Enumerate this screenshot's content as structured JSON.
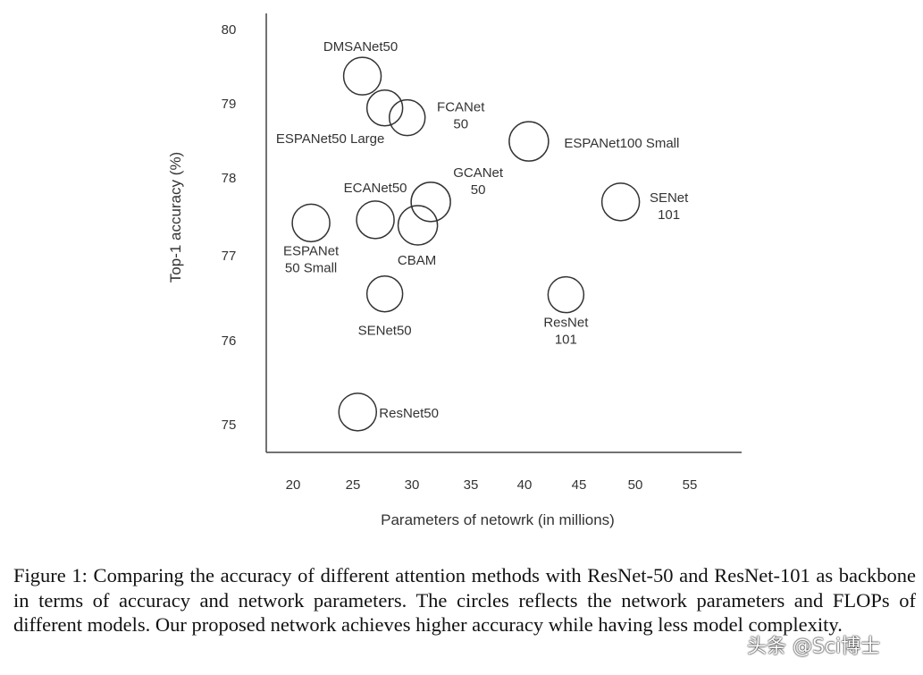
{
  "chart_data": {
    "type": "scatter",
    "title": "",
    "xlabel": "Parameters of netowrk (in millions)",
    "ylabel": "Top-1 accuracy (%)",
    "xlim": [
      18,
      60
    ],
    "ylim": [
      74.6,
      80.2
    ],
    "x_ticks": [
      20,
      25,
      30,
      35,
      40,
      45,
      50,
      55
    ],
    "y_ticks": [
      75,
      76,
      77,
      78,
      79,
      80
    ],
    "grid": false,
    "marker": "hollow-circle",
    "points": [
      {
        "label": [
          "DMSANet50"
        ],
        "x": 25.8,
        "y": 79.36
      },
      {
        "label": [
          "ESPANet50 Large"
        ],
        "x": 27.7,
        "y": 78.93
      },
      {
        "label": [
          "FCANet",
          "50"
        ],
        "x": 29.6,
        "y": 78.8
      },
      {
        "label": [
          "ESPANet100 Small"
        ],
        "x": 40.4,
        "y": 78.48
      },
      {
        "label": [
          "GCANet",
          "50"
        ],
        "x": 31.6,
        "y": 77.68
      },
      {
        "label": [
          "ECANet50"
        ],
        "x": 26.9,
        "y": 77.45
      },
      {
        "label": [
          "CBAM"
        ],
        "x": 30.5,
        "y": 77.38
      },
      {
        "label": [
          "ESPANet",
          "50 Small"
        ],
        "x": 21.5,
        "y": 77.41
      },
      {
        "label": [
          "SENet",
          "101"
        ],
        "x": 48.7,
        "y": 77.68
      },
      {
        "label": [
          "SENet50"
        ],
        "x": 27.7,
        "y": 76.54
      },
      {
        "label": [
          "ResNet",
          "101"
        ],
        "x": 43.8,
        "y": 76.53
      },
      {
        "label": [
          "ResNet50"
        ],
        "x": 25.4,
        "y": 75.14
      }
    ]
  },
  "caption": "Figure 1: Comparing the accuracy of different attention methods with ResNet-50 and ResNet-101 as backbone in terms of accuracy and network parameters. The circles reflects the network parameters and FLOPs of different models. Our proposed network achieves higher accuracy while having less model complexity.",
  "watermark": "头条 @Sci博士"
}
